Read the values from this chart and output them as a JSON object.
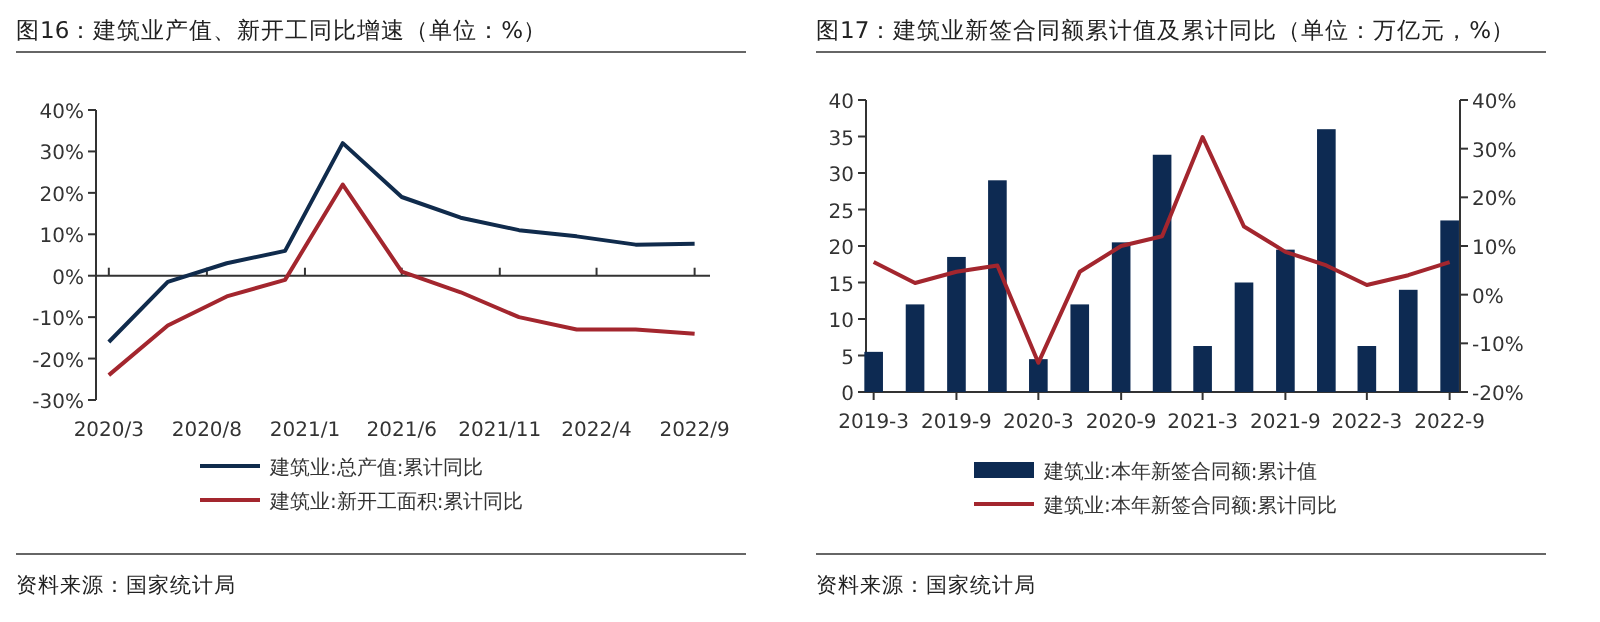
{
  "chart_data": [
    {
      "type": "line",
      "title": "图16：建筑业产值、新开工同比增速（单位：%）",
      "legend": "bottom",
      "x": [
        "2020-03",
        "2020-06",
        "2020-09",
        "2020-12",
        "2021-03",
        "2021-06",
        "2021-09",
        "2021-12",
        "2022-03",
        "2022-06",
        "2022-09"
      ],
      "xlim": [
        "2020-02-10",
        "2022-09-25"
      ],
      "xticks": [
        {
          "value": "2020-03",
          "label": "2020/3"
        },
        {
          "value": "2020-08",
          "label": "2020/8"
        },
        {
          "value": "2021-01",
          "label": "2021/1"
        },
        {
          "value": "2021-06",
          "label": "2021/6"
        },
        {
          "value": "2021-11",
          "label": "2021/11"
        },
        {
          "value": "2022-04",
          "label": "2022/4"
        },
        {
          "value": "2022-09",
          "label": "2022/9"
        }
      ],
      "ylim": [
        -30,
        40
      ],
      "yticks": [
        {
          "value": -30,
          "label": "-30%"
        },
        {
          "value": -20,
          "label": "-20%"
        },
        {
          "value": -10,
          "label": "-10%"
        },
        {
          "value": 0,
          "label": "0%"
        },
        {
          "value": 10,
          "label": "10%"
        },
        {
          "value": 20,
          "label": "20%"
        },
        {
          "value": 30,
          "label": "30%"
        },
        {
          "value": 40,
          "label": "40%"
        }
      ],
      "series": [
        {
          "name": "建筑业:总产值:累计同比",
          "color": "#102b4c",
          "values": [
            -16,
            -1.5,
            3,
            6,
            32,
            19,
            14,
            11,
            9.5,
            7.5,
            7.7
          ]
        },
        {
          "name": "建筑业:新开工面积:累计同比",
          "color": "#a3262e",
          "values": [
            -24,
            -12,
            -5,
            -1,
            22,
            1,
            -4,
            -10,
            -13,
            -13,
            -14
          ]
        }
      ],
      "annotations": [
        "资料来源：国家统计局"
      ]
    },
    {
      "type": "bar",
      "title": "图17：建筑业新签合同额累计值及累计同比（单位：万亿元，%）",
      "legend": "bottom",
      "x": [
        "2019-03",
        "2019-06",
        "2019-09",
        "2019-12",
        "2020-03",
        "2020-06",
        "2020-09",
        "2020-12",
        "2021-03",
        "2021-06",
        "2021-09",
        "2021-12",
        "2022-03",
        "2022-06",
        "2022-09"
      ],
      "xlim": [
        "2019-02-12",
        "2022-09-24"
      ],
      "xticks": [
        {
          "value": "2019-03",
          "label": "2019-3"
        },
        {
          "value": "2019-09",
          "label": "2019-9"
        },
        {
          "value": "2020-03",
          "label": "2020-3"
        },
        {
          "value": "2020-09",
          "label": "2020-9"
        },
        {
          "value": "2021-03",
          "label": "2021-3"
        },
        {
          "value": "2021-09",
          "label": "2021-9"
        },
        {
          "value": "2022-03",
          "label": "2022-3"
        },
        {
          "value": "2022-09",
          "label": "2022-9"
        }
      ],
      "ylim": [
        0,
        40
      ],
      "yticks": [
        0,
        5,
        10,
        15,
        20,
        25,
        30,
        35,
        40
      ],
      "y2lim": [
        -20,
        40
      ],
      "y2ticks": [
        {
          "value": -20,
          "label": "-20%"
        },
        {
          "value": -10,
          "label": "-10%"
        },
        {
          "value": 0,
          "label": "0%"
        },
        {
          "value": 10,
          "label": "10%"
        },
        {
          "value": 20,
          "label": "20%"
        },
        {
          "value": 30,
          "label": "30%"
        },
        {
          "value": 40,
          "label": "40%"
        }
      ],
      "series": [
        {
          "name": "建筑业:本年新签合同额:累计值",
          "color": "#0d2a52",
          "values": [
            5.5,
            12,
            18.5,
            29,
            4.5,
            12,
            20.5,
            32.5,
            6.3,
            15,
            19.5,
            36,
            6.3,
            14,
            23.5
          ]
        },
        {
          "name": "建筑业:本年新签合同额:累计同比",
          "type": "line",
          "axis": "y2",
          "color": "#a3262e",
          "values": [
            6.7,
            2.4,
            4.7,
            6,
            -14,
            4.7,
            10,
            12,
            32.4,
            14,
            8.8,
            6,
            2,
            4,
            6.7
          ]
        }
      ],
      "annotations": [
        "资料来源：国家统计局"
      ]
    }
  ]
}
